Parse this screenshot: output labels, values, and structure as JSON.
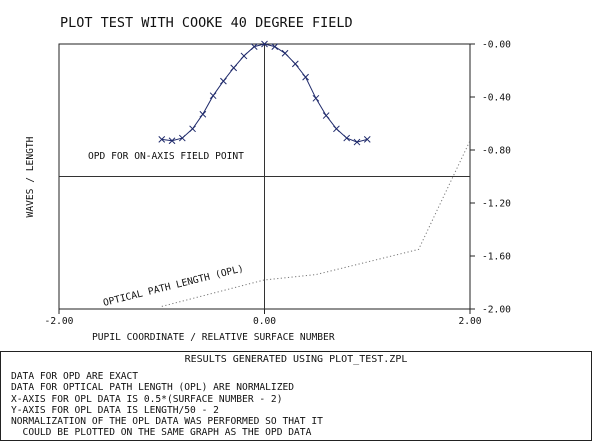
{
  "chart_data": {
    "type": "line",
    "title": "PLOT TEST WITH COOKE 40 DEGREE FIELD",
    "xlabel": "PUPIL COORDINATE / RELATIVE SURFACE NUMBER",
    "ylabel": "WAVES / LENGTH",
    "xlim": [
      -2.0,
      2.0
    ],
    "ylim": [
      -2.0,
      0.0
    ],
    "x_ticks": [
      "-2.00",
      "0.00",
      "2.00"
    ],
    "y_ticks": [
      "-0.00",
      "-0.40",
      "-0.80",
      "-1.20",
      "-1.60",
      "-2.00"
    ],
    "grid": false,
    "reference_line_y": -1.0,
    "series": [
      {
        "name": "OPD FOR ON-AXIS FIELD POINT",
        "style": "solid-with-x-markers",
        "color": "#1f2a6b",
        "x": [
          -1.0,
          -0.9,
          -0.8,
          -0.7,
          -0.6,
          -0.5,
          -0.4,
          -0.3,
          -0.2,
          -0.1,
          0.0,
          0.1,
          0.2,
          0.3,
          0.4,
          0.5,
          0.6,
          0.7,
          0.8,
          0.9,
          1.0
        ],
        "y": [
          -0.72,
          -0.73,
          -0.71,
          -0.64,
          -0.53,
          -0.39,
          -0.28,
          -0.18,
          -0.09,
          -0.02,
          0.0,
          -0.02,
          -0.07,
          -0.15,
          -0.25,
          -0.41,
          -0.54,
          -0.64,
          -0.71,
          -0.74,
          -0.72
        ]
      },
      {
        "name": "OPTICAL PATH LENGTH (OPL)",
        "style": "dotted",
        "color": "#777777",
        "x": [
          -1.0,
          0.0,
          0.5,
          1.5,
          2.0
        ],
        "y": [
          -1.98,
          -1.78,
          -1.74,
          -1.55,
          -0.73
        ]
      }
    ]
  },
  "footer": {
    "results": "RESULTS GENERATED USING PLOT_TEST.ZPL",
    "notes": [
      "DATA FOR OPD ARE EXACT",
      "DATA FOR OPTICAL PATH LENGTH (OPL) ARE NORMALIZED",
      "X-AXIS FOR OPL DATA IS 0.5*(SURFACE NUMBER - 2)",
      "Y-AXIS FOR OPL DATA IS LENGTH/50 - 2",
      "NORMALIZATION OF THE OPL DATA WAS PERFORMED SO THAT IT",
      "  COULD BE PLOTTED ON THE SAME GRAPH AS THE OPD DATA"
    ]
  }
}
